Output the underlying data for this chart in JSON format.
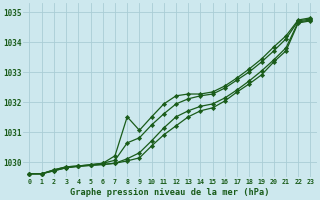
{
  "title": "Graphe pression niveau de la mer (hPa)",
  "x_ticks": [
    0,
    1,
    2,
    3,
    4,
    5,
    6,
    7,
    8,
    9,
    10,
    11,
    12,
    13,
    14,
    15,
    16,
    17,
    18,
    19,
    20,
    21,
    22,
    23
  ],
  "xlim": [
    -0.5,
    23.5
  ],
  "ylim": [
    1029.5,
    1035.3
  ],
  "y_ticks": [
    1030,
    1031,
    1032,
    1033,
    1034,
    1035
  ],
  "background_color": "#cde8ee",
  "grid_color": "#aacdd5",
  "line_color": "#1a5c1a",
  "marker_color": "#1a5c1a",
  "series": [
    [
      1029.62,
      1029.62,
      1029.72,
      1029.82,
      1029.87,
      1029.9,
      1029.93,
      1029.97,
      1030.05,
      1030.15,
      1030.55,
      1030.92,
      1031.22,
      1031.52,
      1031.72,
      1031.82,
      1032.05,
      1032.35,
      1032.62,
      1032.92,
      1033.35,
      1033.72,
      1034.65,
      1034.72
    ],
    [
      1029.62,
      1029.62,
      1029.72,
      1029.82,
      1029.87,
      1029.9,
      1029.93,
      1029.97,
      1030.12,
      1030.32,
      1030.72,
      1031.15,
      1031.52,
      1031.72,
      1031.87,
      1031.95,
      1032.15,
      1032.42,
      1032.72,
      1033.05,
      1033.42,
      1033.82,
      1034.68,
      1034.75
    ],
    [
      1029.62,
      1029.62,
      1029.75,
      1029.85,
      1029.88,
      1029.92,
      1029.97,
      1030.07,
      1030.65,
      1030.82,
      1031.25,
      1031.62,
      1031.95,
      1032.12,
      1032.22,
      1032.28,
      1032.48,
      1032.75,
      1033.02,
      1033.35,
      1033.72,
      1034.12,
      1034.72,
      1034.78
    ],
    [
      1029.62,
      1029.62,
      1029.75,
      1029.85,
      1029.88,
      1029.92,
      1029.97,
      1030.22,
      1031.52,
      1031.07,
      1031.52,
      1031.95,
      1032.22,
      1032.28,
      1032.28,
      1032.35,
      1032.55,
      1032.82,
      1033.12,
      1033.45,
      1033.85,
      1034.22,
      1034.75,
      1034.82
    ]
  ],
  "series_with_markers": [
    0,
    1,
    2,
    3
  ],
  "marker": "D",
  "marker_size": 2.2,
  "linewidth": 0.9
}
